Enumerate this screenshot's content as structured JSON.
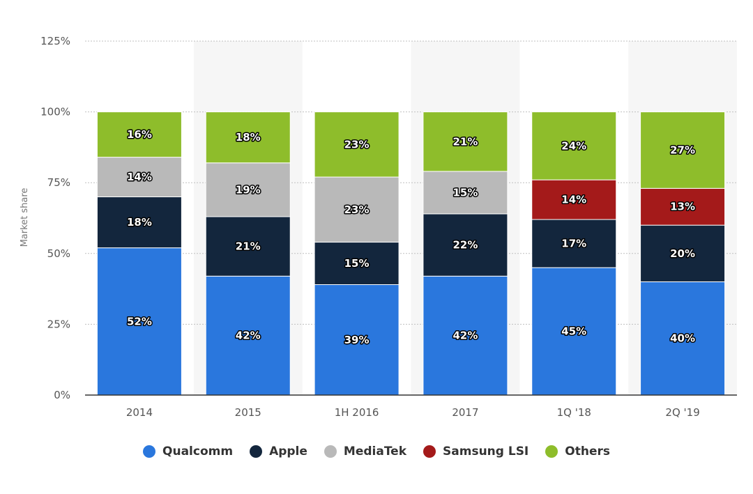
{
  "chart_data": {
    "type": "bar",
    "stacked": true,
    "categories": [
      "2014",
      "2015",
      "1H 2016",
      "2017",
      "1Q '18",
      "2Q '19"
    ],
    "series": [
      {
        "name": "Qualcomm",
        "color": "#2a77dd",
        "values": [
          52,
          42,
          39,
          42,
          45,
          40
        ]
      },
      {
        "name": "Apple",
        "color": "#13263d",
        "values": [
          18,
          21,
          15,
          22,
          17,
          20
        ]
      },
      {
        "name": "MediaTek",
        "color": "#b9b9b9",
        "values": [
          14,
          19,
          23,
          15,
          null,
          null
        ]
      },
      {
        "name": "Samsung LSI",
        "color": "#a41a1a",
        "values": [
          null,
          null,
          null,
          null,
          14,
          13
        ]
      },
      {
        "name": "Others",
        "color": "#8ebd2b",
        "values": [
          16,
          18,
          23,
          21,
          24,
          27
        ]
      }
    ],
    "ylabel": "Market share",
    "ylim": [
      0,
      125
    ],
    "yticks": [
      "0%",
      "25%",
      "50%",
      "75%",
      "100%",
      "125%"
    ],
    "ytick_values": [
      0,
      25,
      50,
      75,
      100,
      125
    ],
    "value_suffix": "%",
    "grid": true,
    "legend_position": "bottom"
  }
}
